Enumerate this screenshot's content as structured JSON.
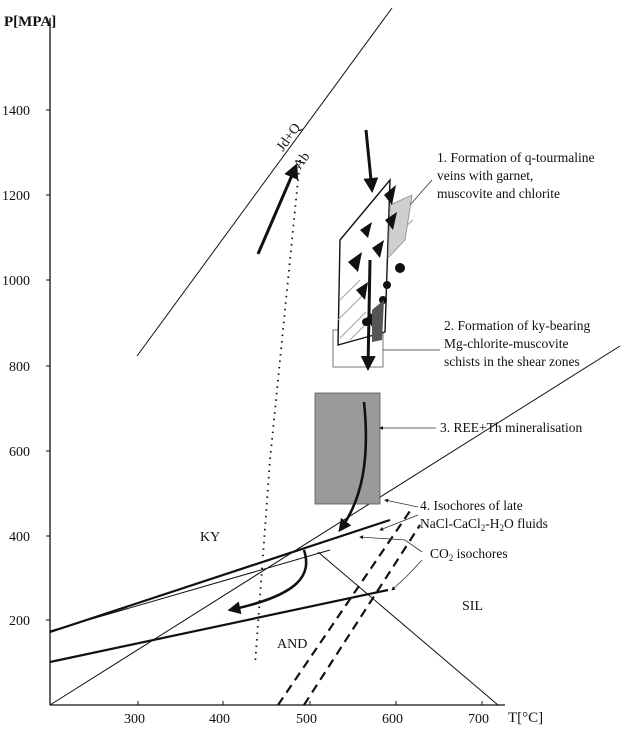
{
  "axes": {
    "y_title": "P[MPA]",
    "x_title": "T[°C]",
    "x_ticks": [
      "300",
      "400",
      "500",
      "600",
      "700"
    ],
    "y_ticks": [
      "200",
      "400",
      "600",
      "800",
      "1000",
      "1200",
      "1400"
    ]
  },
  "field_labels": {
    "jd_q": "Jd+Q",
    "ab": "Ab",
    "ky": "KY",
    "and": "AND",
    "sil": "SIL"
  },
  "annotations": {
    "n1_line1": "1. Formation of q-tourmaline",
    "n1_line2": "veins with garnet,",
    "n1_line3": "muscovite and chlorite",
    "n2_line1": "2. Formation of ky-bearing",
    "n2_line2": "Mg-chlorite-muscovite",
    "n2_line3": "schists in the shear zones",
    "n3": "3. REE+Th mineralisation",
    "n4_line1": "4. Isochores of late",
    "n4_line2": "NaCl-CaCl",
    "n4_sub": "2",
    "n4_line2b": "-H",
    "n4_sub2": "2",
    "n4_line2c": "O fluids",
    "co2_a": "CO",
    "co2_sub": "2",
    "co2_b": " isochores"
  },
  "colors": {
    "ink": "#111111",
    "box_fill": "#9a9a9a",
    "hatch_gray": "#cfcfcf"
  }
}
